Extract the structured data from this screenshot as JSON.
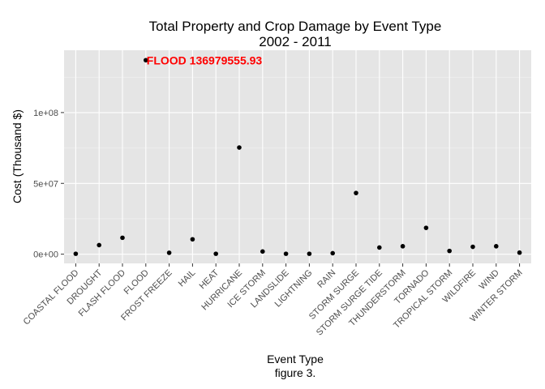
{
  "chart_data": {
    "type": "scatter",
    "title_line1": "Total Property and Crop Damage by Event Type",
    "title_line2": "2002  -  2011",
    "xlabel": "Event Type",
    "caption": "figure 3.",
    "ylabel": "Cost (Thousand $)",
    "ylim": [
      -6500000,
      144000000
    ],
    "yticks": [
      0,
      50000000,
      100000000
    ],
    "ytick_labels": [
      "0e+00",
      "5e+07",
      "1e+08"
    ],
    "grid": true,
    "categories": [
      "COASTAL FLOOD",
      "DROUGHT",
      "FLASH FLOOD",
      "FLOOD",
      "FROST FREEZE",
      "HAIL",
      "HEAT",
      "HURRICANE",
      "ICE STORM",
      "LANDSLIDE",
      "LIGHTNING",
      "RAIN",
      "STORM SURGE",
      "STORM SURGE TIDE",
      "THUNDERSTORM",
      "TORNADO",
      "TROPICAL STORM",
      "WILDFIRE",
      "WIND",
      "WINTER STORM"
    ],
    "values": [
      300000,
      6400000,
      11600000,
      136979555.93,
      1000000,
      10500000,
      300000,
      75300000,
      1900000,
      300000,
      300000,
      700000,
      43200000,
      4700000,
      5600000,
      18600000,
      2300000,
      5200000,
      5600000,
      1100000
    ],
    "annotation": {
      "label": "FLOOD 136979555.93",
      "category": "FLOOD",
      "value": 136979555.93,
      "color": "#ff0000"
    },
    "colors": {
      "panel": "#e5e5e5",
      "grid_major": "#ffffff",
      "grid_minor": "#f2f2f2",
      "point": "#000000",
      "annotation": "#ff0000"
    }
  }
}
